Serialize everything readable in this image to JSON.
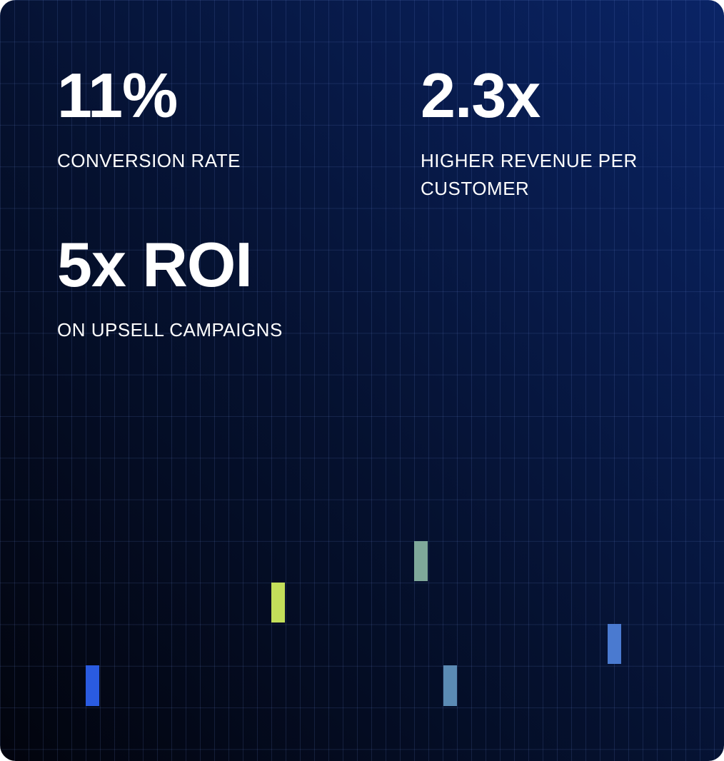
{
  "stats": [
    {
      "value": "11%",
      "label": "CONVERSION RATE"
    },
    {
      "value": "2.3x",
      "label": "HIGHER REVENUE PER CUSTOMER"
    },
    {
      "value": "5x ROI",
      "label": "ON UPSELL CAMPAIGNS"
    }
  ],
  "colors": {
    "card_background_dark": "#02040d",
    "card_background_light": "#0a2466",
    "text": "#ffffff",
    "accent_blocks": [
      "#2a5be0",
      "#c3de5a",
      "#7fa89a",
      "#5b8bb4",
      "#4a7ad0"
    ]
  }
}
